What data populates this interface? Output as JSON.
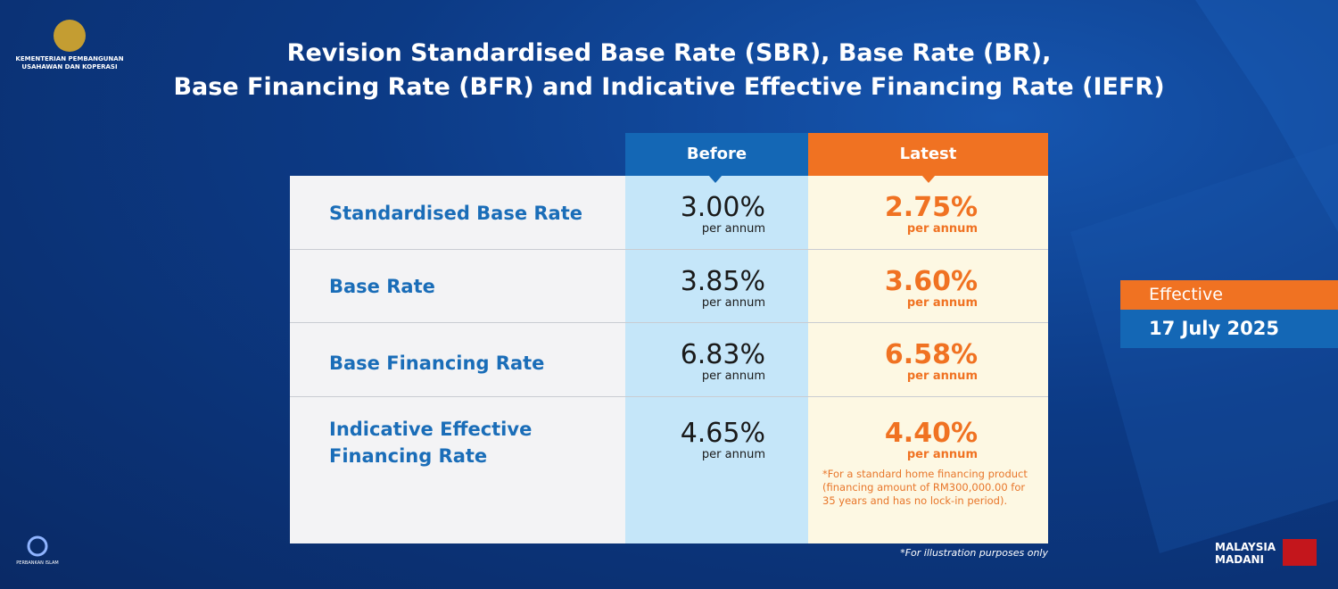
{
  "header": {
    "ministry": [
      "KEMENTERIAN PEMBANGUNAN",
      "USAHAWAN DAN KOPERASI"
    ],
    "title": [
      "Revision Standardised Base Rate (SBR), Base Rate (BR),",
      "Base Financing Rate (BFR) and Indicative Effective Financing Rate (IEFR)"
    ]
  },
  "table": {
    "columns": [
      "Before",
      "Latest"
    ],
    "unit": "per annum",
    "rows": [
      {
        "label": "Standardised Base Rate",
        "before": "3.00%",
        "latest": "2.75%"
      },
      {
        "label": "Base Rate",
        "before": "3.85%",
        "latest": "3.60%"
      },
      {
        "label": "Base Financing Rate",
        "before": "6.83%",
        "latest": "6.58%"
      },
      {
        "label": [
          "Indicative Effective",
          "Financing Rate"
        ],
        "before": "4.65%",
        "latest": "4.40%",
        "note": [
          "*For a standard home financing product",
          "(financing amount of RM300,000.00 for",
          "35 years and has no lock-in period)."
        ]
      }
    ],
    "footnote": "*For illustration purposes only"
  },
  "effective": {
    "label": "Effective",
    "date": "17 July 2025"
  },
  "logos": {
    "left": "PERBANKAN ISLAM",
    "right": [
      "MALAYSIA",
      "MADANI"
    ]
  }
}
